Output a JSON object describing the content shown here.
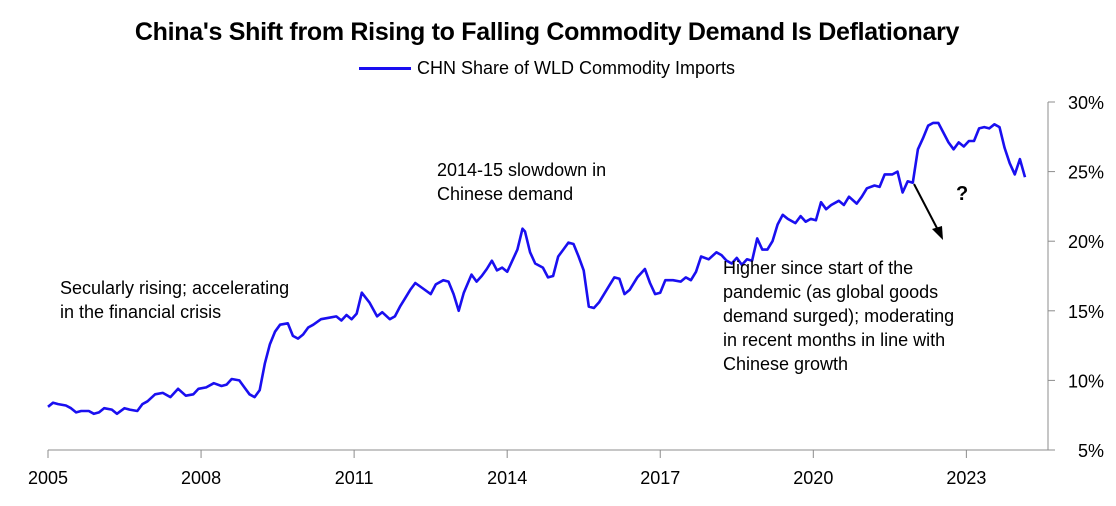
{
  "chart_data": {
    "type": "line",
    "title": "China's Shift from Rising to Falling Commodity Demand Is Deflationary",
    "xlabel": "",
    "ylabel": "",
    "xlim": [
      2005,
      2024.6
    ],
    "ylim": [
      5,
      30
    ],
    "x_ticks": [
      "2005",
      "2008",
      "2011",
      "2014",
      "2017",
      "2020",
      "2023"
    ],
    "y_ticks": [
      "5%",
      "10%",
      "15%",
      "20%",
      "25%",
      "30%"
    ],
    "grid": false,
    "legend_position": "top-center",
    "series": [
      {
        "name": "CHN Share of WLD Commodity Imports",
        "color": "#1a0ff0",
        "points": [
          [
            2005.0,
            8.1
          ],
          [
            2005.1,
            8.4
          ],
          [
            2005.2,
            8.3
          ],
          [
            2005.35,
            8.2
          ],
          [
            2005.45,
            8.0
          ],
          [
            2005.55,
            7.7
          ],
          [
            2005.65,
            7.8
          ],
          [
            2005.8,
            7.8
          ],
          [
            2005.9,
            7.6
          ],
          [
            2006.0,
            7.7
          ],
          [
            2006.1,
            8.0
          ],
          [
            2006.25,
            7.9
          ],
          [
            2006.35,
            7.6
          ],
          [
            2006.5,
            8.0
          ],
          [
            2006.6,
            7.9
          ],
          [
            2006.75,
            7.8
          ],
          [
            2006.85,
            8.3
          ],
          [
            2006.95,
            8.5
          ],
          [
            2007.1,
            9.0
          ],
          [
            2007.25,
            9.1
          ],
          [
            2007.4,
            8.8
          ],
          [
            2007.55,
            9.4
          ],
          [
            2007.7,
            8.9
          ],
          [
            2007.85,
            9.0
          ],
          [
            2007.95,
            9.4
          ],
          [
            2008.1,
            9.5
          ],
          [
            2008.25,
            9.8
          ],
          [
            2008.4,
            9.6
          ],
          [
            2008.5,
            9.7
          ],
          [
            2008.6,
            10.1
          ],
          [
            2008.75,
            10.0
          ],
          [
            2008.85,
            9.5
          ],
          [
            2008.95,
            9.0
          ],
          [
            2009.05,
            8.8
          ],
          [
            2009.15,
            9.3
          ],
          [
            2009.25,
            11.2
          ],
          [
            2009.35,
            12.6
          ],
          [
            2009.45,
            13.5
          ],
          [
            2009.55,
            14.0
          ],
          [
            2009.7,
            14.1
          ],
          [
            2009.8,
            13.2
          ],
          [
            2009.9,
            13.0
          ],
          [
            2010.0,
            13.3
          ],
          [
            2010.1,
            13.8
          ],
          [
            2010.2,
            14.0
          ],
          [
            2010.35,
            14.4
          ],
          [
            2010.5,
            14.5
          ],
          [
            2010.65,
            14.6
          ],
          [
            2010.75,
            14.3
          ],
          [
            2010.85,
            14.7
          ],
          [
            2010.95,
            14.4
          ],
          [
            2011.05,
            14.8
          ],
          [
            2011.15,
            16.3
          ],
          [
            2011.3,
            15.6
          ],
          [
            2011.45,
            14.6
          ],
          [
            2011.55,
            14.9
          ],
          [
            2011.7,
            14.4
          ],
          [
            2011.8,
            14.6
          ],
          [
            2011.9,
            15.3
          ],
          [
            2012.0,
            15.9
          ],
          [
            2012.1,
            16.5
          ],
          [
            2012.2,
            17.0
          ],
          [
            2012.35,
            16.6
          ],
          [
            2012.5,
            16.2
          ],
          [
            2012.6,
            16.9
          ],
          [
            2012.75,
            17.2
          ],
          [
            2012.85,
            17.1
          ],
          [
            2012.95,
            16.2
          ],
          [
            2013.05,
            15.0
          ],
          [
            2013.15,
            16.3
          ],
          [
            2013.3,
            17.6
          ],
          [
            2013.4,
            17.1
          ],
          [
            2013.5,
            17.5
          ],
          [
            2013.6,
            18.0
          ],
          [
            2013.7,
            18.6
          ],
          [
            2013.8,
            17.9
          ],
          [
            2013.9,
            18.1
          ],
          [
            2014.0,
            17.8
          ],
          [
            2014.1,
            18.6
          ],
          [
            2014.2,
            19.4
          ],
          [
            2014.3,
            20.9
          ],
          [
            2014.35,
            20.7
          ],
          [
            2014.45,
            19.2
          ],
          [
            2014.55,
            18.4
          ],
          [
            2014.7,
            18.1
          ],
          [
            2014.8,
            17.4
          ],
          [
            2014.9,
            17.5
          ],
          [
            2015.0,
            18.9
          ],
          [
            2015.1,
            19.4
          ],
          [
            2015.2,
            19.9
          ],
          [
            2015.3,
            19.8
          ],
          [
            2015.4,
            18.9
          ],
          [
            2015.5,
            17.9
          ],
          [
            2015.6,
            15.3
          ],
          [
            2015.7,
            15.2
          ],
          [
            2015.8,
            15.6
          ],
          [
            2015.9,
            16.2
          ],
          [
            2016.0,
            16.8
          ],
          [
            2016.1,
            17.4
          ],
          [
            2016.2,
            17.3
          ],
          [
            2016.3,
            16.2
          ],
          [
            2016.4,
            16.5
          ],
          [
            2016.55,
            17.4
          ],
          [
            2016.7,
            18.0
          ],
          [
            2016.8,
            17.0
          ],
          [
            2016.9,
            16.2
          ],
          [
            2017.0,
            16.3
          ],
          [
            2017.1,
            17.2
          ],
          [
            2017.25,
            17.2
          ],
          [
            2017.4,
            17.1
          ],
          [
            2017.5,
            17.4
          ],
          [
            2017.6,
            17.2
          ],
          [
            2017.7,
            17.8
          ],
          [
            2017.8,
            18.9
          ],
          [
            2017.95,
            18.7
          ],
          [
            2018.1,
            19.2
          ],
          [
            2018.2,
            19.0
          ],
          [
            2018.3,
            18.6
          ],
          [
            2018.4,
            18.4
          ],
          [
            2018.5,
            18.8
          ],
          [
            2018.6,
            18.3
          ],
          [
            2018.7,
            18.7
          ],
          [
            2018.8,
            18.6
          ],
          [
            2018.9,
            20.2
          ],
          [
            2019.0,
            19.4
          ],
          [
            2019.1,
            19.4
          ],
          [
            2019.2,
            20.0
          ],
          [
            2019.3,
            21.2
          ],
          [
            2019.4,
            21.9
          ],
          [
            2019.5,
            21.6
          ],
          [
            2019.65,
            21.3
          ],
          [
            2019.75,
            21.8
          ],
          [
            2019.85,
            21.4
          ],
          [
            2019.95,
            21.6
          ],
          [
            2020.05,
            21.5
          ],
          [
            2020.15,
            22.8
          ],
          [
            2020.25,
            22.3
          ],
          [
            2020.35,
            22.6
          ],
          [
            2020.5,
            22.9
          ],
          [
            2020.6,
            22.6
          ],
          [
            2020.7,
            23.2
          ],
          [
            2020.85,
            22.7
          ],
          [
            2020.95,
            23.2
          ],
          [
            2021.05,
            23.8
          ],
          [
            2021.2,
            24.0
          ],
          [
            2021.3,
            23.9
          ],
          [
            2021.4,
            24.8
          ],
          [
            2021.55,
            24.8
          ],
          [
            2021.65,
            25.0
          ],
          [
            2021.75,
            23.5
          ],
          [
            2021.85,
            24.3
          ],
          [
            2021.95,
            24.2
          ],
          [
            2022.05,
            26.6
          ],
          [
            2022.15,
            27.4
          ],
          [
            2022.25,
            28.3
          ],
          [
            2022.35,
            28.5
          ],
          [
            2022.45,
            28.5
          ],
          [
            2022.55,
            27.8
          ],
          [
            2022.65,
            27.1
          ],
          [
            2022.75,
            26.6
          ],
          [
            2022.85,
            27.1
          ],
          [
            2022.95,
            26.8
          ],
          [
            2023.05,
            27.2
          ],
          [
            2023.15,
            27.2
          ],
          [
            2023.25,
            28.1
          ],
          [
            2023.35,
            28.2
          ],
          [
            2023.45,
            28.1
          ],
          [
            2023.55,
            28.4
          ],
          [
            2023.65,
            28.2
          ],
          [
            2023.75,
            26.7
          ],
          [
            2023.85,
            25.6
          ],
          [
            2023.95,
            24.8
          ],
          [
            2024.05,
            25.9
          ],
          [
            2024.15,
            24.6
          ]
        ]
      }
    ],
    "annotations": [
      {
        "id": "secular",
        "text": "Secularly rising; accelerating\nin the financial crisis"
      },
      {
        "id": "slowdown",
        "text": "2014-15 slowdown in\nChinese demand"
      },
      {
        "id": "pandemic",
        "text": "Higher since start of the\npandemic (as global goods\ndemand surged); moderating\nin recent months in line with\nChinese growth"
      },
      {
        "id": "question",
        "text": "?"
      }
    ]
  }
}
